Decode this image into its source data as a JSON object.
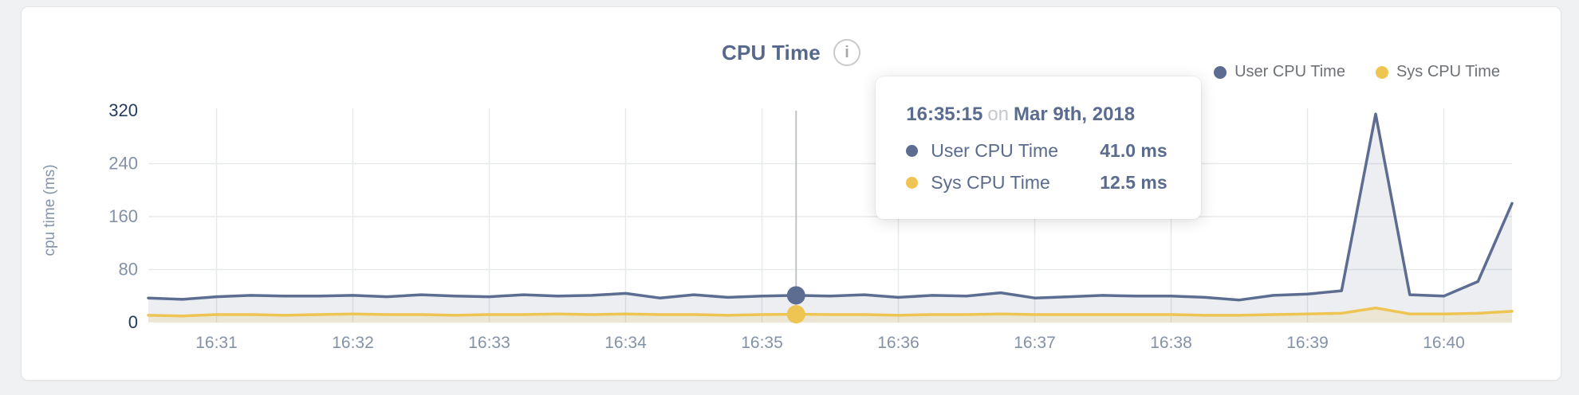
{
  "page": {
    "title": "CPU Time",
    "info_icon_glyph": "i"
  },
  "colors": {
    "user_line": "#5d6d92",
    "user_fill": "rgba(101,116,148,0.12)",
    "sys_line": "#eec452",
    "sys_fill": "rgba(238,196,82,0.18)",
    "grid": "#e8e9ea",
    "axis_label_mid": "#8392a7",
    "axis_label_extreme": "#243a5e",
    "crosshair": "#c1c3c7"
  },
  "chart_data": {
    "type": "area",
    "title": "CPU Time",
    "xlabel": "",
    "ylabel": "cpu time (ms)",
    "ylim": [
      0,
      320
    ],
    "yticks": [
      0,
      80,
      160,
      240,
      320
    ],
    "xticks": [
      "16:31",
      "16:32",
      "16:33",
      "16:34",
      "16:35",
      "16:36",
      "16:37",
      "16:38",
      "16:39",
      "16:40"
    ],
    "x_range": [
      "16:30:30",
      "16:40:30"
    ],
    "grid": true,
    "legend_position": "top-right",
    "x": [
      "16:30:30",
      "16:30:45",
      "16:31:00",
      "16:31:15",
      "16:31:30",
      "16:31:45",
      "16:32:00",
      "16:32:15",
      "16:32:30",
      "16:32:45",
      "16:33:00",
      "16:33:15",
      "16:33:30",
      "16:33:45",
      "16:34:00",
      "16:34:15",
      "16:34:30",
      "16:34:45",
      "16:35:00",
      "16:35:15",
      "16:35:30",
      "16:35:45",
      "16:36:00",
      "16:36:15",
      "16:36:30",
      "16:36:45",
      "16:37:00",
      "16:37:15",
      "16:37:30",
      "16:37:45",
      "16:38:00",
      "16:38:15",
      "16:38:30",
      "16:38:45",
      "16:39:00",
      "16:39:15",
      "16:39:30",
      "16:39:45",
      "16:40:00",
      "16:40:15",
      "16:40:30"
    ],
    "series": [
      {
        "name": "User CPU Time",
        "values": [
          37,
          35,
          39,
          41,
          40,
          40,
          41,
          39,
          42,
          40,
          39,
          42,
          40,
          41,
          44,
          37,
          42,
          38,
          40,
          41,
          40,
          42,
          38,
          41,
          40,
          45,
          37,
          39,
          41,
          40,
          40,
          38,
          34,
          41,
          43,
          48,
          315,
          42,
          40,
          62,
          180
        ]
      },
      {
        "name": "Sys CPU Time",
        "values": [
          11,
          10,
          12,
          12,
          11,
          12,
          13,
          12,
          12,
          11,
          12,
          12,
          13,
          12,
          13,
          12,
          12,
          11,
          12,
          12.5,
          12,
          12,
          11,
          12,
          12,
          13,
          12,
          12,
          12,
          12,
          12,
          11,
          11,
          12,
          13,
          14,
          22,
          13,
          13,
          14,
          17
        ]
      }
    ],
    "selected": {
      "time": "16:35:15",
      "separator": "on",
      "date": "Mar 9th, 2018",
      "rows": [
        {
          "label": "User CPU Time",
          "value": "41.0 ms"
        },
        {
          "label": "Sys CPU Time",
          "value": "12.5 ms"
        }
      ]
    }
  }
}
